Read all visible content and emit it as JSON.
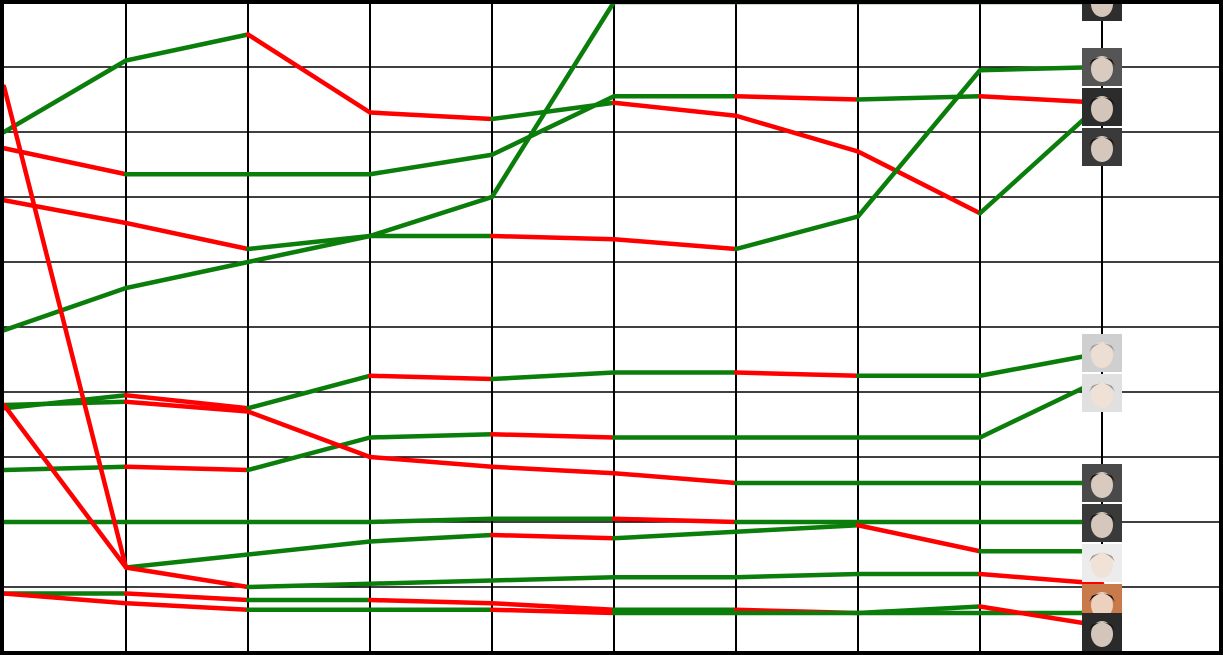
{
  "chart_data": {
    "type": "line",
    "title": "",
    "xlabel": "",
    "ylabel": "",
    "x": [
      0,
      1,
      2,
      3,
      4,
      5,
      6,
      7,
      8,
      9
    ],
    "ylim": [
      0,
      10
    ],
    "y_inverted": true,
    "grid": true,
    "colors": {
      "up": "#0a7d0a",
      "down": "#ff0000",
      "grid": "#000000"
    },
    "series": [
      {
        "values": [
          2.25,
          2.65,
          2.65,
          2.65,
          2.35,
          1.45,
          1.45,
          1.5,
          1.45,
          1.55
        ],
        "avatar_bg": "#2c2c2c"
      },
      {
        "values": [
          2.0,
          0.9,
          0.5,
          1.7,
          1.8,
          1.55,
          1.75,
          2.3,
          3.25,
          1.55
        ],
        "avatar_bg": "#3a3a3a"
      },
      {
        "values": [
          5.05,
          4.4,
          4.0,
          3.6,
          3.0,
          0.0,
          0.0,
          0.0,
          0.0,
          0.0
        ],
        "avatar_bg": "#2e2e2e"
      },
      {
        "values": [
          3.05,
          3.4,
          3.8,
          3.6,
          3.6,
          3.65,
          3.8,
          3.3,
          1.05,
          1.0
        ],
        "avatar_bg": "#555555"
      },
      {
        "values": [
          6.25,
          6.05,
          6.25,
          5.75,
          5.8,
          5.7,
          5.7,
          5.75,
          5.75,
          5.4
        ],
        "avatar_bg": "#cfcfcf"
      },
      {
        "values": [
          7.2,
          7.15,
          7.2,
          6.7,
          6.65,
          6.7,
          6.7,
          6.7,
          6.7,
          5.8
        ],
        "avatar_bg": "#e0e0e0"
      },
      {
        "values": [
          6.2,
          6.15,
          6.3,
          7.0,
          7.15,
          7.25,
          7.4,
          7.4,
          7.4,
          7.4
        ],
        "avatar_bg": "#4a4a4a"
      },
      {
        "values": [
          8.0,
          8.0,
          8.0,
          8.0,
          7.95,
          7.95,
          8.0,
          8.0,
          8.0,
          8.0
        ],
        "avatar_bg": "#3a3a3a"
      },
      {
        "values": [
          6.2,
          8.7,
          8.5,
          8.3,
          8.2,
          8.25,
          8.15,
          8.05,
          8.45,
          8.45
        ],
        "avatar_bg": "#ececec"
      },
      {
        "values": [
          1.3,
          8.7,
          9.0,
          8.95,
          8.9,
          8.85,
          8.85,
          8.8,
          8.8,
          8.95
        ],
        "avatar_bg": "#c87a4a"
      },
      {
        "values": [
          9.1,
          9.1,
          9.2,
          9.2,
          9.25,
          9.35,
          9.35,
          9.4,
          9.4,
          9.4
        ],
        "avatar_bg": "#5a5a5a"
      },
      {
        "values": [
          9.1,
          9.25,
          9.35,
          9.35,
          9.35,
          9.4,
          9.4,
          9.4,
          9.3,
          9.6
        ],
        "avatar_bg": "#2a2a2a"
      }
    ]
  }
}
